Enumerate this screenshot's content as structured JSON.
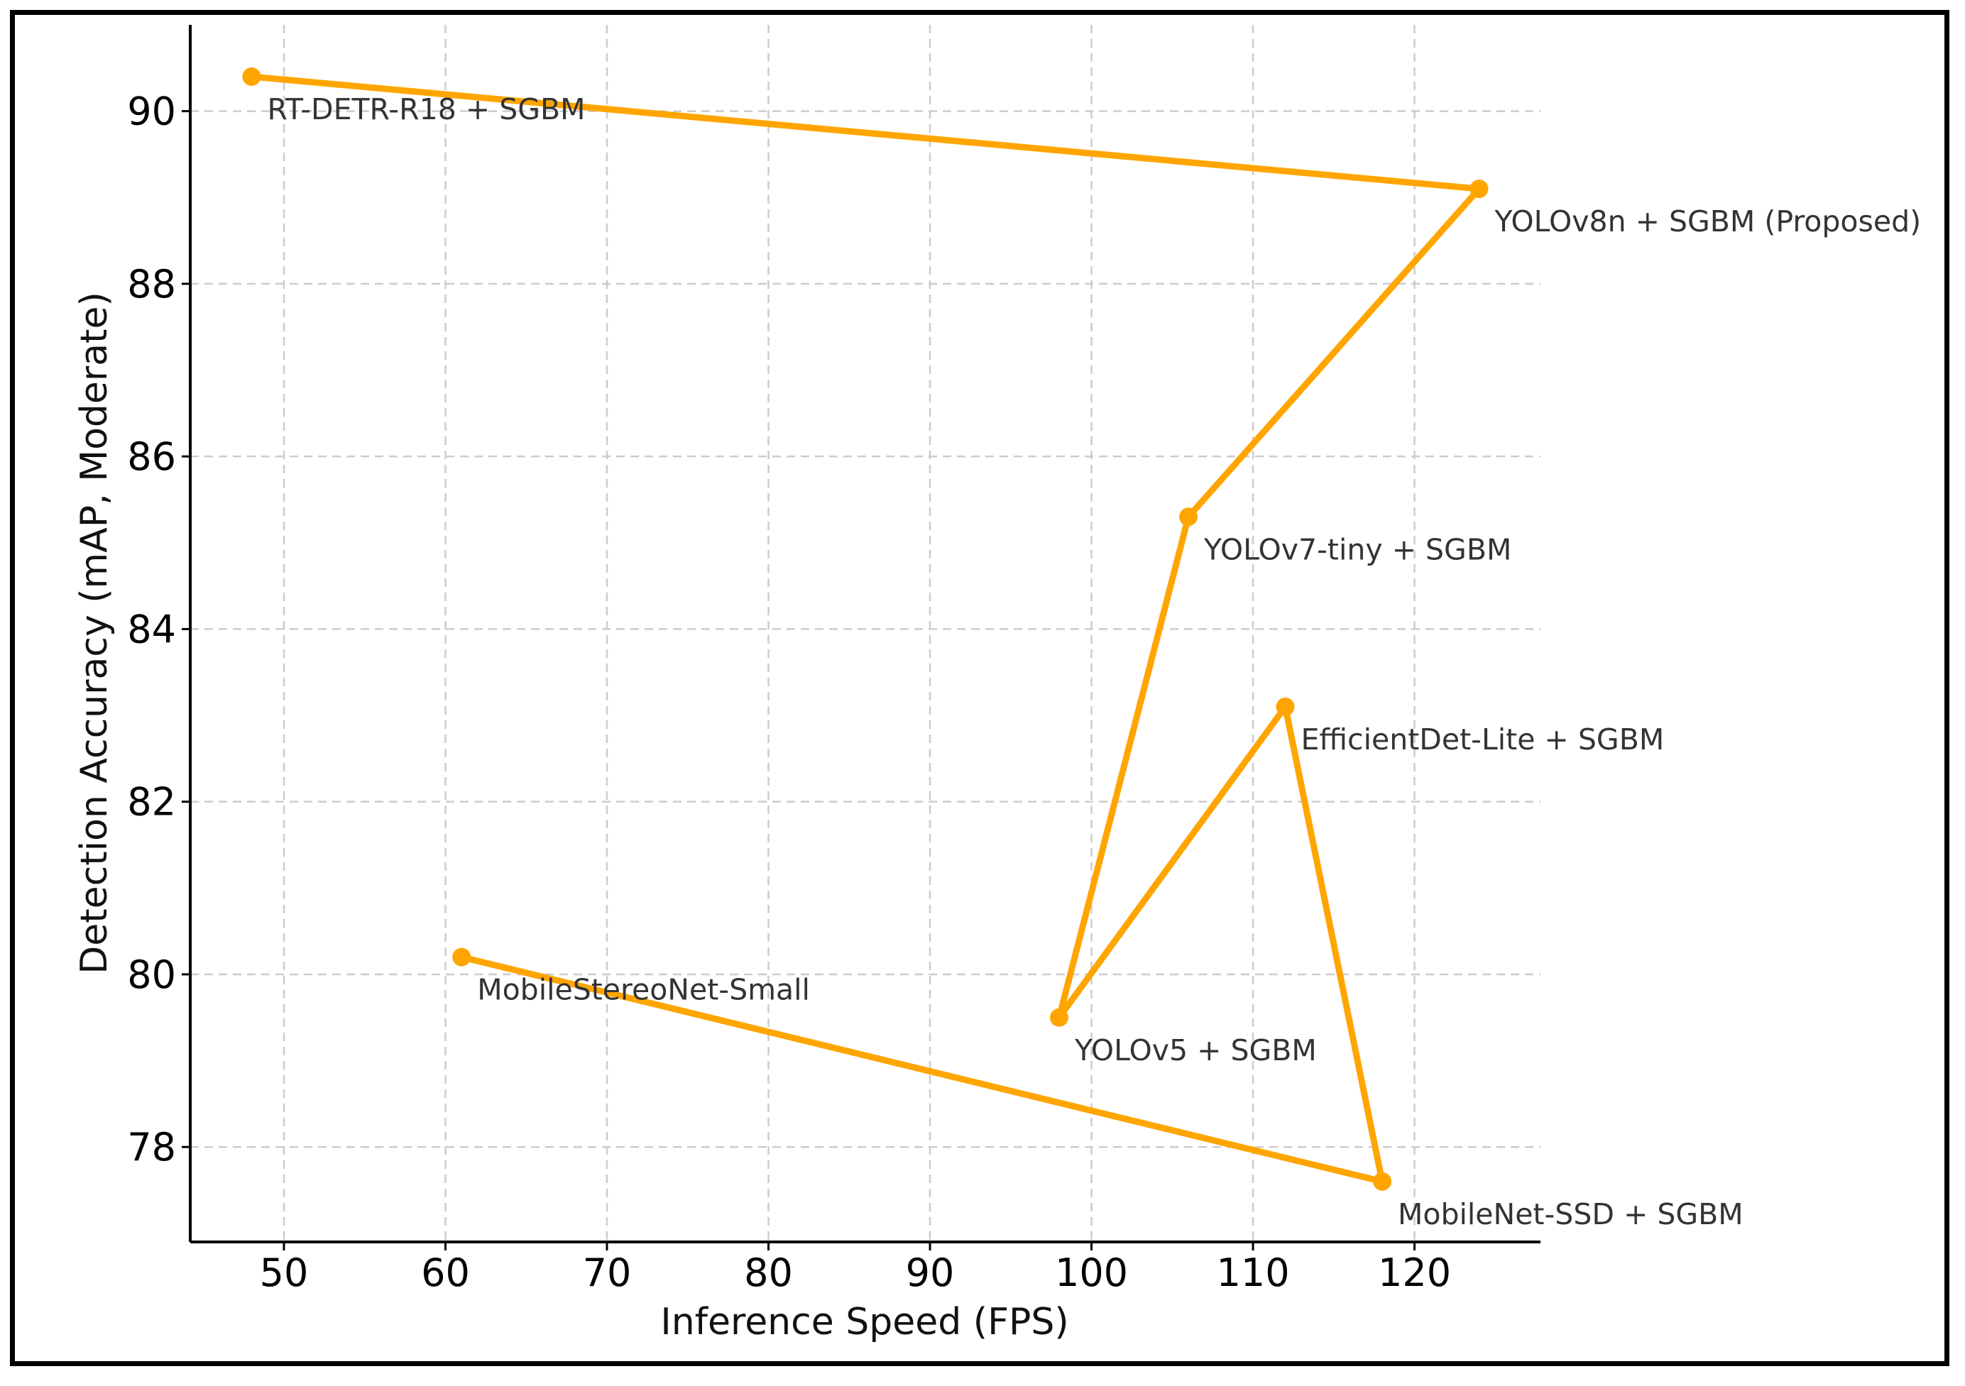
{
  "chart_data": {
    "type": "line",
    "title": "",
    "xlabel": "Inference Speed (FPS)",
    "ylabel": "Detection Accuracy (mAP, Moderate)",
    "xlim": [
      44.2,
      127.8
    ],
    "ylim": [
      76.9,
      91.0
    ],
    "xticks": [
      50,
      60,
      70,
      80,
      90,
      100,
      110,
      120
    ],
    "yticks": [
      78,
      80,
      82,
      84,
      86,
      88,
      90
    ],
    "grid": true,
    "color": "#FFA500",
    "series": [
      {
        "points": [
          {
            "x": 48,
            "y": 90.4,
            "label": "RT-DETR-R18 + SGBM"
          },
          {
            "x": 124,
            "y": 89.1,
            "label": "YOLOv8n + SGBM (Proposed)"
          },
          {
            "x": 106,
            "y": 85.3,
            "label": "YOLOv7-tiny + SGBM"
          },
          {
            "x": 98,
            "y": 79.5,
            "label": "YOLOv5 + SGBM"
          },
          {
            "x": 112,
            "y": 83.1,
            "label": "EfficientDet-Lite + SGBM"
          },
          {
            "x": 118,
            "y": 77.6,
            "label": "MobileNet-SSD + SGBM"
          },
          {
            "x": 61,
            "y": 80.2,
            "label": "MobileStereoNet-Small"
          }
        ]
      }
    ]
  }
}
